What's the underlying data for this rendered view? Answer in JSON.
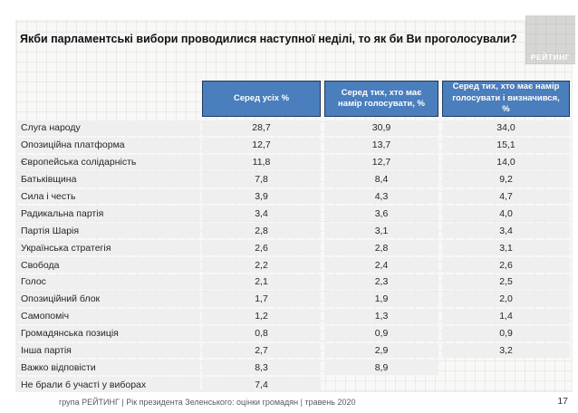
{
  "slide": {
    "title": "Якби парламентські вибори проводилися наступної неділі, то як би Ви проголосували?",
    "logo_text": "РЕЙТИНГ",
    "footer": "група РЕЙТИНГ  |  Рік президента Зеленського: оцінки громадян | травень 2020",
    "page_number": "17"
  },
  "colors": {
    "header_bg": "#4a7ebd",
    "header_border": "#1f3864",
    "row_bg": "#efefef",
    "slide_bg": "#f8f8f6",
    "logo_bg": "#d6d6d4"
  },
  "chart_data": {
    "type": "table",
    "columns": [
      "Серед усіх %",
      "Серед тих, хто має намір голосувати, %",
      "Серед тих, хто має намір голосувати і визначився, %"
    ],
    "rows": [
      {
        "label": "Слуга народу",
        "values": [
          "28,7",
          "30,9",
          "34,0"
        ]
      },
      {
        "label": "Опозиційна платформа",
        "values": [
          "12,7",
          "13,7",
          "15,1"
        ]
      },
      {
        "label": "Європейська солідарність",
        "values": [
          "11,8",
          "12,7",
          "14,0"
        ]
      },
      {
        "label": "Батьківщина",
        "values": [
          "7,8",
          "8,4",
          "9,2"
        ]
      },
      {
        "label": "Сила і честь",
        "values": [
          "3,9",
          "4,3",
          "4,7"
        ]
      },
      {
        "label": "Радикальна партія",
        "values": [
          "3,4",
          "3,6",
          "4,0"
        ]
      },
      {
        "label": "Партія Шарія",
        "values": [
          "2,8",
          "3,1",
          "3,4"
        ]
      },
      {
        "label": "Українська стратегія",
        "values": [
          "2,6",
          "2,8",
          "3,1"
        ]
      },
      {
        "label": "Свобода",
        "values": [
          "2,2",
          "2,4",
          "2,6"
        ]
      },
      {
        "label": "Голос",
        "values": [
          "2,1",
          "2,3",
          "2,5"
        ]
      },
      {
        "label": "Опозиційний блок",
        "values": [
          "1,7",
          "1,9",
          "2,0"
        ]
      },
      {
        "label": "Самопоміч",
        "values": [
          "1,2",
          "1,3",
          "1,4"
        ]
      },
      {
        "label": "Громадянська позиція",
        "values": [
          "0,8",
          "0,9",
          "0,9"
        ]
      },
      {
        "label": "Інша партія",
        "values": [
          "2,7",
          "2,9",
          "3,2"
        ]
      },
      {
        "label": "Важко відповісти",
        "values": [
          "8,3",
          "8,9",
          null
        ]
      },
      {
        "label": "Не брали б участі у виборах",
        "values": [
          "7,4",
          null,
          null
        ]
      }
    ]
  }
}
